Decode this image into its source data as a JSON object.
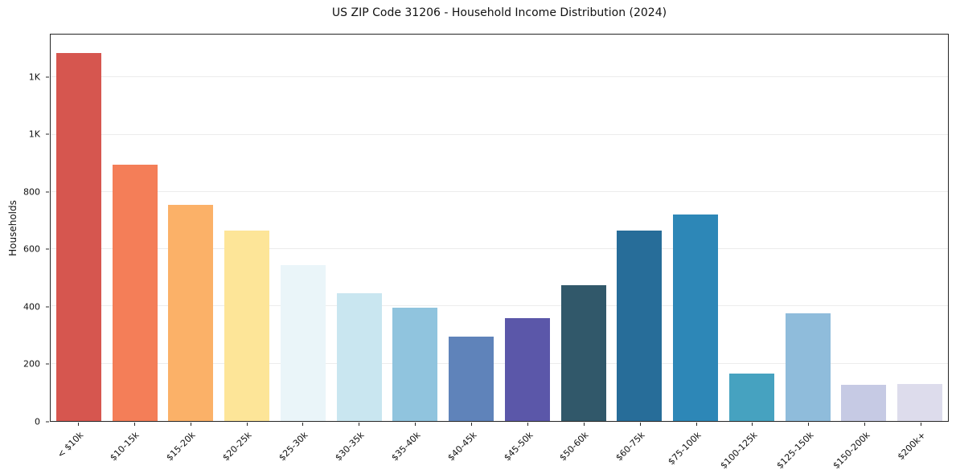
{
  "chart_data": {
    "type": "bar",
    "title": "US ZIP Code 31206 - Household Income Distribution (2024)",
    "xlabel": "",
    "ylabel": "Households",
    "ylim": [
      0,
      1350
    ],
    "grid": "horizontal",
    "legend": "none",
    "categories": [
      "< $10k",
      "$10-15k",
      "$15-20k",
      "$20-25k",
      "$25-30k",
      "$30-35k",
      "$35-40k",
      "$40-45k",
      "$45-50k",
      "$50-60k",
      "$60-75k",
      "$75-100k",
      "$100-125k",
      "$125-150k",
      "$150-200k",
      "$200k+"
    ],
    "values": [
      1285,
      895,
      755,
      665,
      545,
      445,
      395,
      295,
      360,
      475,
      665,
      720,
      165,
      375,
      125,
      130
    ],
    "bar_colors": [
      "#d6564f",
      "#f47e58",
      "#fbb168",
      "#fde598",
      "#eaf5f9",
      "#c9e6f0",
      "#90c4de",
      "#5f83ba",
      "#5b57a9",
      "#31586a",
      "#276d99",
      "#2d87b7",
      "#46a2c0",
      "#8fbcdb",
      "#c6cae4",
      "#dddcec"
    ],
    "yticks": [
      {
        "value": 0,
        "label": "0"
      },
      {
        "value": 200,
        "label": "200"
      },
      {
        "value": 400,
        "label": "400"
      },
      {
        "value": 600,
        "label": "600"
      },
      {
        "value": 800,
        "label": "800"
      },
      {
        "value": 1000,
        "label": "1K"
      },
      {
        "value": 1200,
        "label": "1K"
      }
    ],
    "colors": {
      "axis": "#262626",
      "gridline": "#ececec",
      "text": "#111111",
      "background": "#ffffff"
    }
  }
}
